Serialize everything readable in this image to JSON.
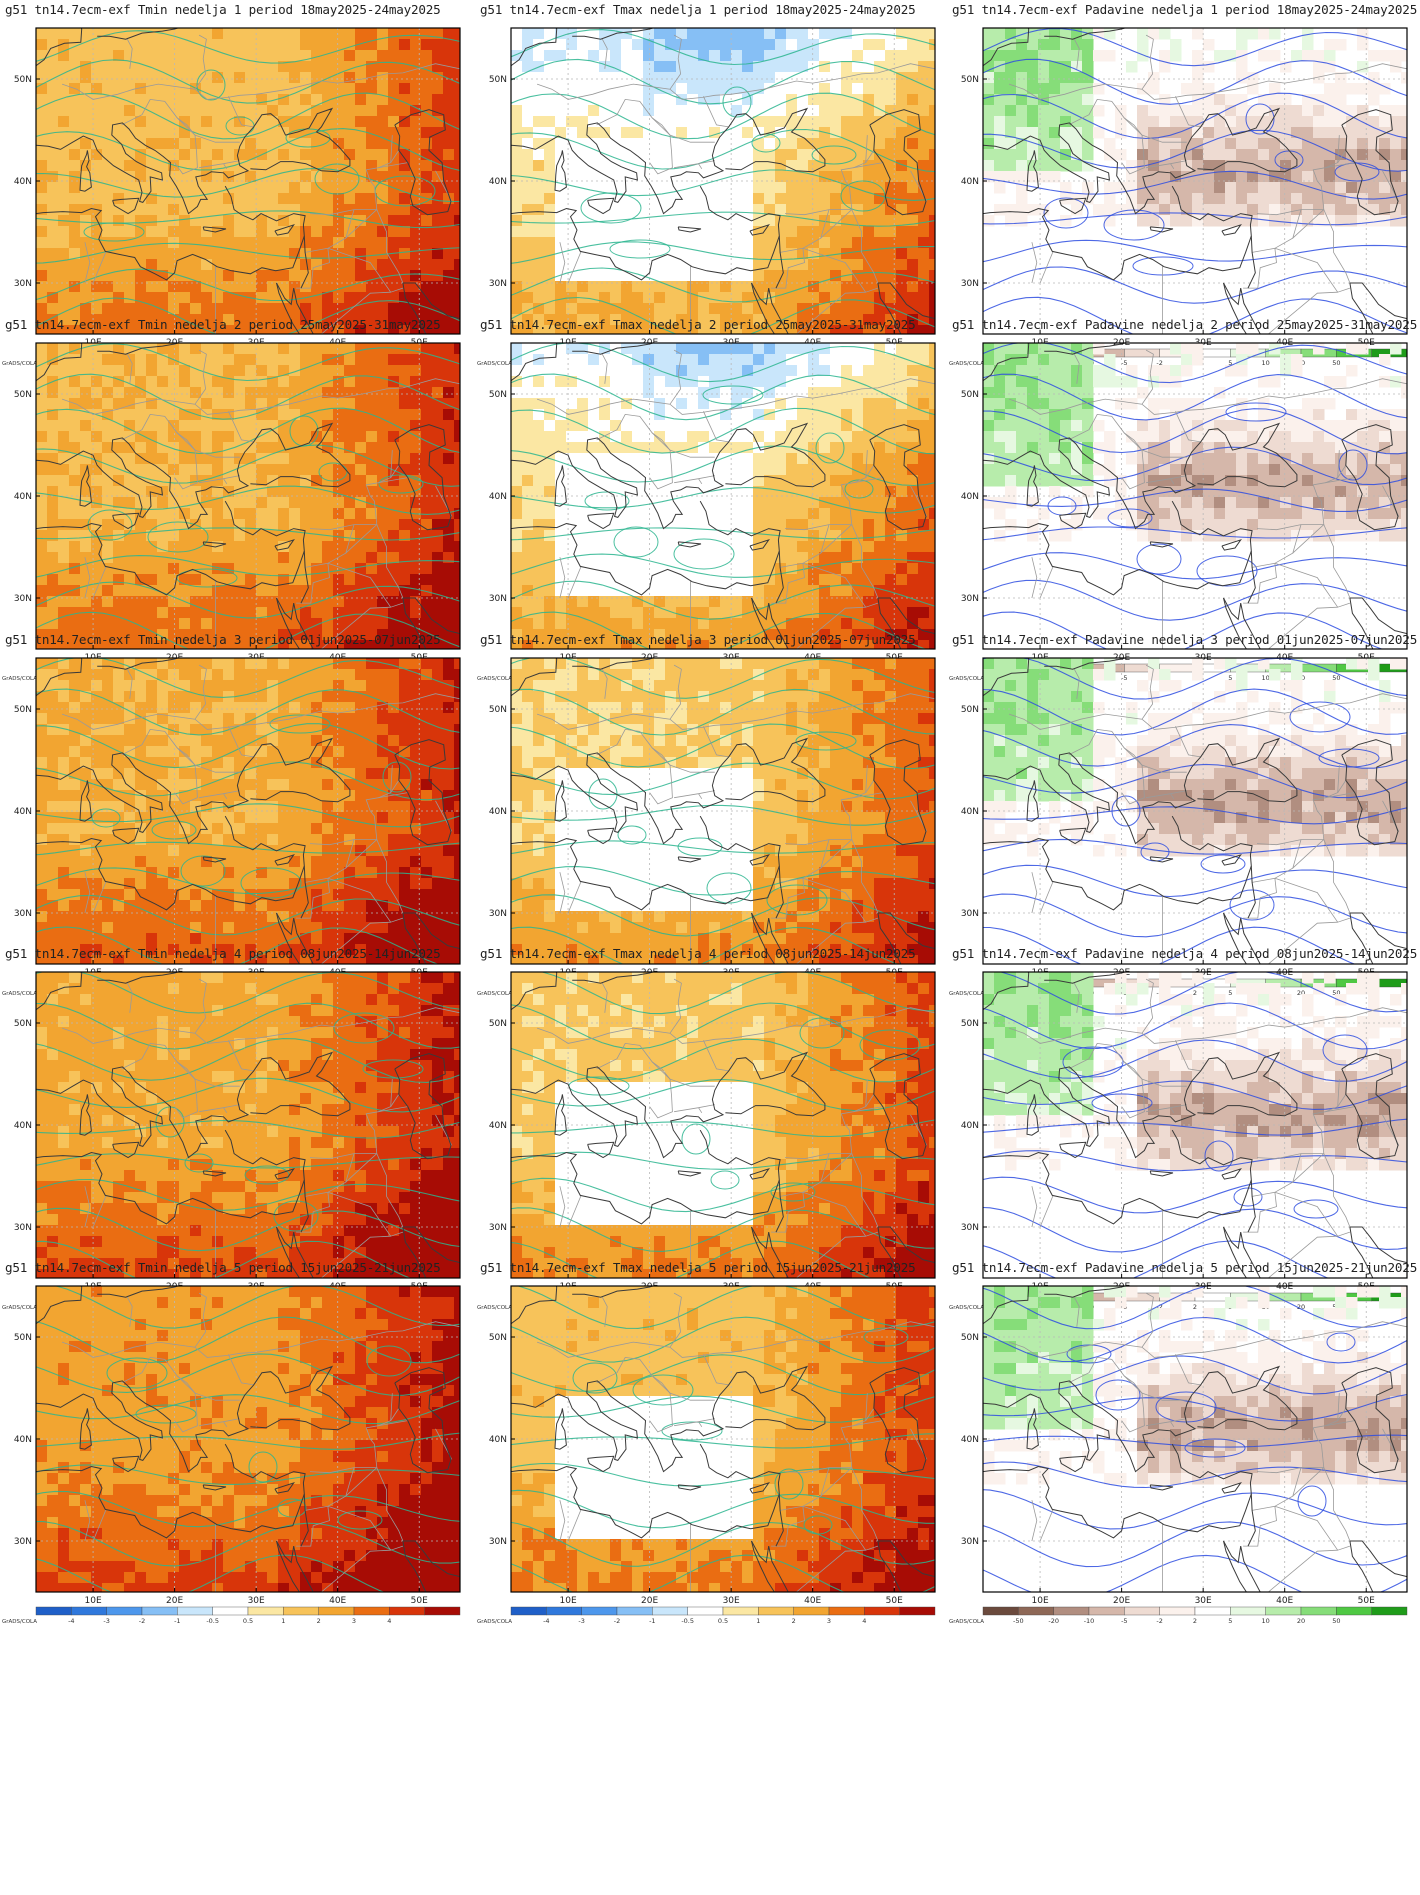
{
  "run_prefix": "g51 tn14.7ecm-exf",
  "branding": "GrADS/COLA",
  "variables": [
    {
      "key": "tmin",
      "label": "Tmin",
      "kind": "temp"
    },
    {
      "key": "tmax",
      "label": "Tmax",
      "kind": "temp"
    },
    {
      "key": "padavine",
      "label": "Padavine",
      "kind": "precip"
    }
  ],
  "weeks": [
    {
      "label": "nedelja 1",
      "period": "period 18may2025-24may2025"
    },
    {
      "label": "nedelja 2",
      "period": "period 25may2025-31may2025"
    },
    {
      "label": "nedelja 3",
      "period": "period 01jun2025-07jun2025"
    },
    {
      "label": "nedelja 4",
      "period": "period 08jun2025-14jun2025"
    },
    {
      "label": "nedelja 5",
      "period": "period 15jun2025-21jun2025"
    }
  ],
  "titles": [
    [
      "g51 tn14.7ecm-exf Tmin nedelja 1 period 18may2025-24may2025",
      "g51 tn14.7ecm-exf Tmax nedelja 1 period 18may2025-24may2025",
      "g51 tn14.7ecm-exf Padavine nedelja 1 period 18may2025-24may2025"
    ],
    [
      "g51 tn14.7ecm-exf Tmin nedelja 2 period 25may2025-31may2025",
      "g51 tn14.7ecm-exf Tmax nedelja 2 period 25may2025-31may2025",
      "g51 tn14.7ecm-exf Padavine nedelja 2 period 25may2025-31may2025"
    ],
    [
      "g51 tn14.7ecm-exf Tmin nedelja 3 period 01jun2025-07jun2025",
      "g51 tn14.7ecm-exf Tmax nedelja 3 period 01jun2025-07jun2025",
      "g51 tn14.7ecm-exf Padavine nedelja 3 period 01jun2025-07jun2025"
    ],
    [
      "g51 tn14.7ecm-exf Tmin nedelja 4 period 08jun2025-14jun2025",
      "g51 tn14.7ecm-exf Tmax nedelja 4 period 08jun2025-14jun2025",
      "g51 tn14.7ecm-exf Padavine nedelja 4 period 08jun2025-14jun2025"
    ],
    [
      "g51 tn14.7ecm-exf Tmin nedelja 5 period 15jun2025-21jun2025",
      "g51 tn14.7ecm-exf Tmax nedelja 5 period 15jun2025-21jun2025",
      "g51 tn14.7ecm-exf Padavine nedelja 5 period 15jun2025-21jun2025"
    ]
  ],
  "axes": {
    "x_ticks": [
      "10E",
      "20E",
      "30E",
      "40E",
      "50E"
    ],
    "y_ticks": [
      "50N",
      "40N",
      "30N"
    ]
  },
  "temp_colorbar": {
    "labels": [
      "-4",
      "-3",
      "-2",
      "-1",
      "-0.5",
      "0.5",
      "1",
      "2",
      "3",
      "4"
    ],
    "colors": [
      "#1f5fc8",
      "#2f78dc",
      "#4d97ec",
      "#86bff5",
      "#c9e6fb",
      "#ffffff",
      "#fbe7a3",
      "#f7c35a",
      "#f2a531",
      "#ea6d12",
      "#d8350a",
      "#a70c05"
    ]
  },
  "precip_colorbar": {
    "labels": [
      "-50",
      "-20",
      "-10",
      "-5",
      "-2",
      "2",
      "5",
      "10",
      "20",
      "50"
    ],
    "colors": [
      "#6b4a3d",
      "#8e6857",
      "#b18e80",
      "#d5b7aa",
      "#eedbd2",
      "#fbf1ec",
      "#ffffff",
      "#e6f8e1",
      "#b7ecab",
      "#86dd79",
      "#4fc843",
      "#1f9c1a"
    ]
  },
  "colors": {
    "coast": "#3a3a3a",
    "border": "#9a9a9a",
    "grid": "#b8b8b8",
    "temp_contour": "#2bb58f",
    "precip_contour": "#2e4ee0"
  }
}
